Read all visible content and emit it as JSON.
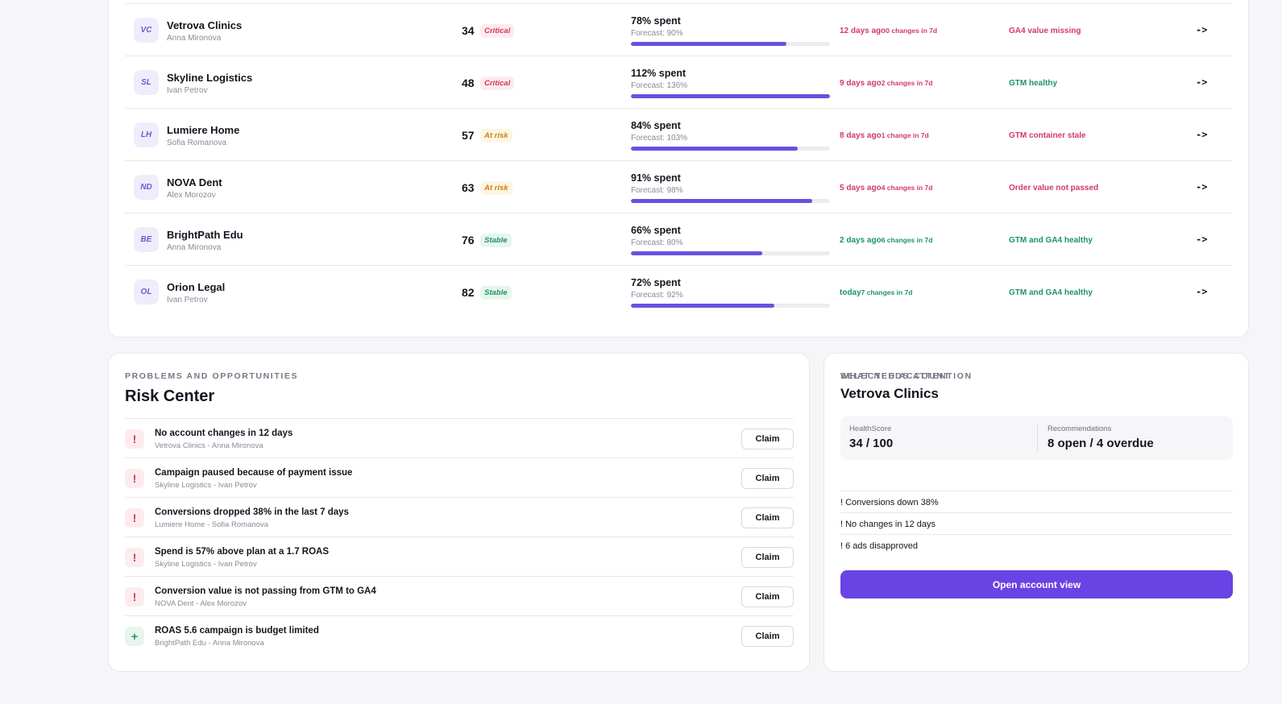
{
  "accounts": [
    {
      "initials": "VC",
      "name": "Vetrova Clinics",
      "owner": "Anna Mironova",
      "score": "34",
      "status": "Critical",
      "spent": "78% spent",
      "forecast": "Forecast: 90%",
      "spent_fraction": 0.78,
      "last_change": "12 days ago",
      "changes": "0 changes in 7d",
      "tracking": "GA4 value missing",
      "arrow": "->"
    },
    {
      "initials": "SL",
      "name": "Skyline Logistics",
      "owner": "Ivan Petrov",
      "score": "48",
      "status": "Critical",
      "spent": "112% spent",
      "forecast": "Forecast: 136%",
      "spent_fraction": 1.0,
      "last_change": "9 days ago",
      "changes": "2 changes in 7d",
      "tracking": "GTM healthy",
      "arrow": "->"
    },
    {
      "initials": "LH",
      "name": "Lumiere Home",
      "owner": "Sofia Romanova",
      "score": "57",
      "status": "At risk",
      "spent": "84% spent",
      "forecast": "Forecast: 103%",
      "spent_fraction": 0.84,
      "last_change": "8 days ago",
      "changes": "1 change in 7d",
      "tracking": "GTM container stale",
      "arrow": "->"
    },
    {
      "initials": "ND",
      "name": "NOVA Dent",
      "owner": "Alex Morozov",
      "score": "63",
      "status": "At risk",
      "spent": "91% spent",
      "forecast": "Forecast: 98%",
      "spent_fraction": 0.91,
      "last_change": "5 days ago",
      "changes": "4 changes in 7d",
      "tracking": "Order value not passed",
      "arrow": "->"
    },
    {
      "initials": "BE",
      "name": "BrightPath Edu",
      "owner": "Anna Mironova",
      "score": "76",
      "status": "Stable",
      "spent": "66% spent",
      "forecast": "Forecast: 80%",
      "spent_fraction": 0.66,
      "last_change": "2 days ago",
      "changes": "6 changes in 7d",
      "tracking": "GTM and GA4 healthy",
      "arrow": "->"
    },
    {
      "initials": "OL",
      "name": "Orion Legal",
      "owner": "Ivan Petrov",
      "score": "82",
      "status": "Stable",
      "spent": "72% spent",
      "forecast": "Forecast: 92%",
      "spent_fraction": 0.72,
      "last_change": "today",
      "changes": "7 changes in 7d",
      "tracking": "GTM and GA4 healthy",
      "arrow": "->"
    }
  ],
  "risk_center": {
    "eyebrow": "PROBLEMS AND OPPORTUNITIES",
    "title": "Risk Center",
    "items": [
      {
        "icon": "!",
        "kind": "alert",
        "title": "No account changes in 12 days",
        "subtitle": "Vetrova Clinics - Anna Mironova",
        "action": "Claim"
      },
      {
        "icon": "!",
        "kind": "alert",
        "title": "Campaign paused because of payment issue",
        "subtitle": "Skyline Logistics - Ivan Petrov",
        "action": "Claim"
      },
      {
        "icon": "!",
        "kind": "alert",
        "title": "Conversions dropped 38% in the last 7 days",
        "subtitle": "Lumiere Home - Sofia Romanova",
        "action": "Claim"
      },
      {
        "icon": "!",
        "kind": "alert",
        "title": "Spend is 57% above plan at a 1.7 ROAS",
        "subtitle": "Skyline Logistics - Ivan Petrov",
        "action": "Claim"
      },
      {
        "icon": "!",
        "kind": "alert",
        "title": "Conversion value is not passing from GTM to GA4",
        "subtitle": "NOVA Dent - Alex Morozov",
        "action": "Claim"
      },
      {
        "icon": "+",
        "kind": "plus",
        "title": "ROAS 5.6 campaign is budget limited",
        "subtitle": "BrightPath Edu - Anna Mironova",
        "action": "Claim"
      }
    ]
  },
  "selected_account": {
    "eyebrow": "SELECTED ACCOUNT",
    "name": "Vetrova Clinics",
    "health_label": "HealthScore",
    "health_value": "34 / 100",
    "recs_label": "Recommendations",
    "recs_value": "8 open / 4 overdue",
    "attention_title": "WHAT NEEDS ATTENTION",
    "attention_items": [
      "! Conversions down 38%",
      "! No changes in 12 days",
      "! 6 ads disapproved"
    ],
    "open_button": "Open account view"
  },
  "colors": {
    "accent": "#6a43e4",
    "bar": "#6b4fe0",
    "critical": "#d6365a",
    "at_risk": "#c68310",
    "stable": "#1f9462"
  }
}
